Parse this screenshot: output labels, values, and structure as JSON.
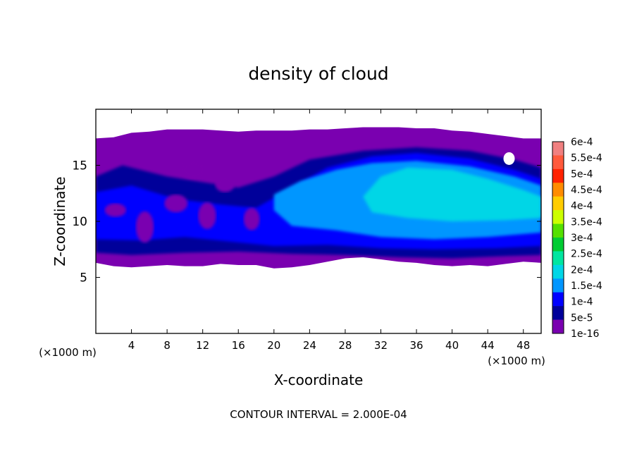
{
  "chart_data": {
    "type": "heatmap",
    "title": "density of cloud",
    "xlabel": "X-coordinate",
    "ylabel": "Z-coordinate",
    "x_unit_left": "(×1000 m)",
    "x_unit_right": "(×1000 m)",
    "xlim": [
      0,
      50
    ],
    "ylim": [
      0,
      20
    ],
    "x_ticks": [
      4,
      8,
      12,
      16,
      20,
      24,
      28,
      32,
      36,
      40,
      44,
      48
    ],
    "y_ticks": [
      5,
      10,
      15
    ],
    "footer": "CONTOUR INTERVAL = 2.000E-04",
    "colorbar": {
      "labels": [
        "6e-4",
        "5.5e-4",
        "5e-4",
        "4.5e-4",
        "4e-4",
        "3.5e-4",
        "3e-4",
        "2.5e-4",
        "2e-4",
        "1.5e-4",
        "1e-4",
        "5e-5",
        "1e-16"
      ],
      "colors": [
        "#f08080",
        "#ff5a3c",
        "#ff2200",
        "#ff8c00",
        "#ffcc00",
        "#ccff00",
        "#55e000",
        "#00cc33",
        "#00e6a0",
        "#00d6e6",
        "#0096ff",
        "#0000ff",
        "#00009a",
        "#7a00b0"
      ]
    },
    "cloud_field": {
      "x_coordinates": [
        0,
        2,
        4,
        6,
        8,
        10,
        12,
        14,
        16,
        18,
        20,
        22,
        24,
        26,
        28,
        30,
        32,
        34,
        36,
        38,
        40,
        42,
        44,
        46,
        48,
        50
      ],
      "cloud_top_z": [
        17.4,
        17.5,
        17.9,
        18.0,
        18.2,
        18.2,
        18.2,
        18.1,
        18.0,
        18.1,
        18.1,
        18.1,
        18.2,
        18.2,
        18.3,
        18.4,
        18.4,
        18.4,
        18.3,
        18.3,
        18.1,
        18.0,
        17.8,
        17.6,
        17.4,
        17.4
      ],
      "cloud_base_z": [
        6.3,
        6.0,
        5.9,
        6.0,
        6.1,
        6.0,
        6.0,
        6.2,
        6.1,
        6.1,
        5.8,
        5.9,
        6.1,
        6.4,
        6.7,
        6.8,
        6.6,
        6.4,
        6.3,
        6.1,
        6.0,
        6.1,
        6.0,
        6.2,
        6.4,
        6.3
      ]
    }
  }
}
